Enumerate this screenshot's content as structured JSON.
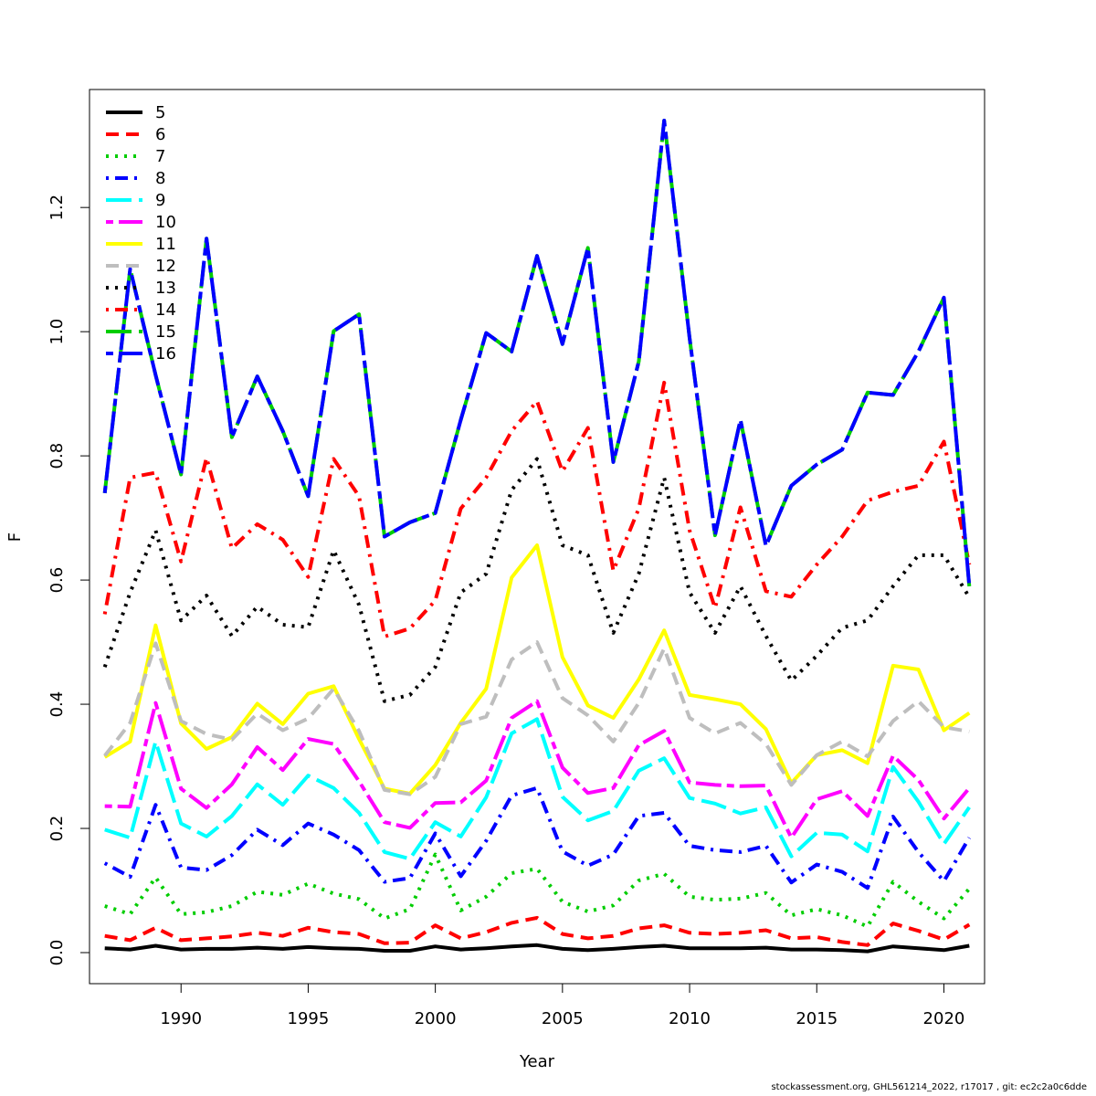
{
  "chart_data": {
    "type": "line",
    "title": "",
    "xlabel": "Year",
    "ylabel": "F",
    "xlim": [
      1986.4,
      2021.6
    ],
    "ylim": [
      -0.05,
      1.39
    ],
    "xticks": [
      1990,
      1995,
      2000,
      2005,
      2010,
      2015,
      2020
    ],
    "yticks": [
      0.0,
      0.2,
      0.4,
      0.6,
      0.8,
      1.0,
      1.2
    ],
    "grid": false,
    "legend_position": "top-left",
    "x": [
      1987,
      1988,
      1989,
      1990,
      1991,
      1992,
      1993,
      1994,
      1995,
      1996,
      1997,
      1998,
      1999,
      2000,
      2001,
      2002,
      2003,
      2004,
      2005,
      2006,
      2007,
      2008,
      2009,
      2010,
      2011,
      2012,
      2013,
      2014,
      2015,
      2016,
      2017,
      2018,
      2019,
      2020,
      2021
    ],
    "series": [
      {
        "name": "5",
        "color": "#000000",
        "dash": "solid",
        "values": [
          0.007,
          0.005,
          0.011,
          0.005,
          0.006,
          0.006,
          0.008,
          0.006,
          0.009,
          0.007,
          0.006,
          0.003,
          0.003,
          0.01,
          0.005,
          0.007,
          0.01,
          0.012,
          0.006,
          0.004,
          0.006,
          0.009,
          0.011,
          0.007,
          0.007,
          0.007,
          0.008,
          0.005,
          0.005,
          0.004,
          0.002,
          0.01,
          0.007,
          0.004,
          0.011
        ]
      },
      {
        "name": "6",
        "color": "#ff0000",
        "dash": "dashed",
        "values": [
          0.027,
          0.02,
          0.04,
          0.02,
          0.023,
          0.026,
          0.032,
          0.027,
          0.04,
          0.033,
          0.03,
          0.015,
          0.016,
          0.044,
          0.023,
          0.033,
          0.048,
          0.056,
          0.03,
          0.023,
          0.027,
          0.039,
          0.044,
          0.032,
          0.03,
          0.032,
          0.036,
          0.023,
          0.025,
          0.017,
          0.012,
          0.047,
          0.035,
          0.021,
          0.045
        ]
      },
      {
        "name": "7",
        "color": "#00cd00",
        "dash": "dotted",
        "values": [
          0.075,
          0.062,
          0.121,
          0.062,
          0.065,
          0.075,
          0.098,
          0.093,
          0.111,
          0.095,
          0.086,
          0.055,
          0.07,
          0.158,
          0.068,
          0.09,
          0.128,
          0.135,
          0.082,
          0.066,
          0.076,
          0.116,
          0.127,
          0.09,
          0.085,
          0.087,
          0.096,
          0.06,
          0.07,
          0.06,
          0.042,
          0.114,
          0.082,
          0.055,
          0.103
        ]
      },
      {
        "name": "8",
        "color": "#0000ff",
        "dash": "dotdash",
        "values": [
          0.144,
          0.122,
          0.238,
          0.137,
          0.133,
          0.157,
          0.198,
          0.173,
          0.208,
          0.19,
          0.165,
          0.114,
          0.12,
          0.192,
          0.123,
          0.18,
          0.253,
          0.265,
          0.163,
          0.14,
          0.158,
          0.22,
          0.225,
          0.172,
          0.165,
          0.162,
          0.172,
          0.113,
          0.142,
          0.13,
          0.104,
          0.219,
          0.162,
          0.115,
          0.185
        ]
      },
      {
        "name": "9",
        "color": "#00ffff",
        "dash": "longdash",
        "values": [
          0.198,
          0.185,
          0.34,
          0.208,
          0.187,
          0.22,
          0.271,
          0.238,
          0.285,
          0.265,
          0.225,
          0.162,
          0.151,
          0.21,
          0.187,
          0.25,
          0.353,
          0.376,
          0.251,
          0.213,
          0.228,
          0.293,
          0.313,
          0.249,
          0.24,
          0.224,
          0.234,
          0.155,
          0.193,
          0.19,
          0.163,
          0.299,
          0.243,
          0.175,
          0.234
        ]
      },
      {
        "name": "10",
        "color": "#ff00ff",
        "dash": "twodash",
        "values": [
          0.236,
          0.235,
          0.402,
          0.264,
          0.233,
          0.271,
          0.331,
          0.294,
          0.344,
          0.336,
          0.276,
          0.21,
          0.201,
          0.241,
          0.242,
          0.277,
          0.378,
          0.405,
          0.298,
          0.257,
          0.265,
          0.334,
          0.357,
          0.274,
          0.27,
          0.268,
          0.269,
          0.185,
          0.247,
          0.26,
          0.22,
          0.317,
          0.278,
          0.216,
          0.265
        ]
      },
      {
        "name": "11",
        "color": "#ffff00",
        "dash": "solid",
        "values": [
          0.315,
          0.34,
          0.527,
          0.369,
          0.328,
          0.347,
          0.401,
          0.368,
          0.417,
          0.429,
          0.344,
          0.264,
          0.256,
          0.302,
          0.37,
          0.425,
          0.604,
          0.656,
          0.476,
          0.398,
          0.378,
          0.44,
          0.519,
          0.415,
          0.408,
          0.4,
          0.36,
          0.273,
          0.318,
          0.326,
          0.305,
          0.462,
          0.456,
          0.358,
          0.386
        ]
      },
      {
        "name": "12",
        "color": "#bebebe",
        "dash": "dashed",
        "values": [
          0.317,
          0.37,
          0.498,
          0.373,
          0.352,
          0.343,
          0.385,
          0.358,
          0.377,
          0.425,
          0.357,
          0.262,
          0.255,
          0.283,
          0.368,
          0.38,
          0.472,
          0.5,
          0.41,
          0.382,
          0.34,
          0.402,
          0.49,
          0.378,
          0.353,
          0.37,
          0.336,
          0.27,
          0.318,
          0.34,
          0.316,
          0.373,
          0.405,
          0.363,
          0.356
        ]
      },
      {
        "name": "13",
        "color": "#000000",
        "dash": "dotted",
        "values": [
          0.46,
          0.58,
          0.68,
          0.535,
          0.575,
          0.51,
          0.557,
          0.528,
          0.524,
          0.648,
          0.56,
          0.405,
          0.415,
          0.46,
          0.58,
          0.61,
          0.745,
          0.795,
          0.656,
          0.64,
          0.515,
          0.61,
          0.765,
          0.58,
          0.515,
          0.59,
          0.51,
          0.438,
          0.478,
          0.523,
          0.535,
          0.59,
          0.64,
          0.64,
          0.572
        ]
      },
      {
        "name": "14",
        "color": "#ff0000",
        "dash": "dotdash",
        "values": [
          0.545,
          0.765,
          0.773,
          0.63,
          0.797,
          0.651,
          0.69,
          0.665,
          0.605,
          0.795,
          0.735,
          0.509,
          0.522,
          0.567,
          0.715,
          0.765,
          0.84,
          0.888,
          0.775,
          0.845,
          0.615,
          0.715,
          0.918,
          0.68,
          0.555,
          0.717,
          0.582,
          0.573,
          0.625,
          0.67,
          0.728,
          0.742,
          0.752,
          0.823,
          0.625
        ]
      },
      {
        "name": "15",
        "color": "#00cd00",
        "dash": "longdash",
        "values": [
          0.74,
          1.101,
          0.93,
          0.77,
          1.15,
          0.83,
          0.928,
          0.84,
          0.735,
          1.001,
          1.028,
          0.67,
          0.693,
          0.708,
          0.858,
          0.998,
          0.968,
          1.122,
          0.98,
          1.135,
          0.79,
          0.952,
          1.34,
          0.99,
          0.672,
          0.858,
          0.655,
          0.752,
          0.786,
          0.81,
          0.902,
          0.898,
          0.968,
          1.055,
          0.59
        ]
      },
      {
        "name": "16",
        "color": "#0000ff",
        "dash": "twodash",
        "values": [
          0.74,
          1.101,
          0.93,
          0.77,
          1.15,
          0.83,
          0.928,
          0.84,
          0.735,
          1.001,
          1.028,
          0.67,
          0.693,
          0.708,
          0.858,
          0.998,
          0.968,
          1.122,
          0.98,
          1.135,
          0.79,
          0.952,
          1.34,
          0.99,
          0.672,
          0.858,
          0.655,
          0.752,
          0.786,
          0.81,
          0.902,
          0.898,
          0.968,
          1.055,
          0.59
        ]
      }
    ]
  },
  "footer": "stockassessment.org, GHL561214_2022, r17017 , git: ec2c2a0c6dde"
}
